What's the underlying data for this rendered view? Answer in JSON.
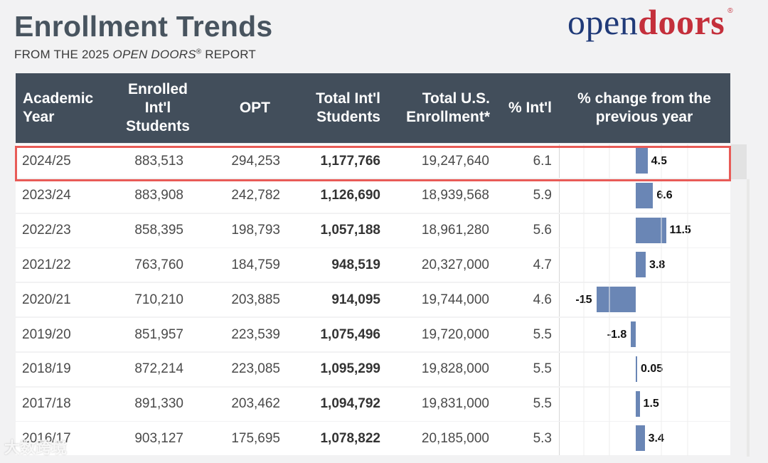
{
  "header": {
    "title": "Enrollment Trends",
    "subtitle_pre": "FROM THE 2025 ",
    "subtitle_em": "OPEN DOORS",
    "subtitle_reg": "®",
    "subtitle_post": " REPORT"
  },
  "logo": {
    "open": "open",
    "doors": "doors",
    "reg": "®"
  },
  "table": {
    "columns": [
      "Academic\nYear",
      "Enrolled\nInt'l\nStudents",
      "OPT",
      "Total Int'l\nStudents",
      "Total U.S.\nEnrollment*",
      "% Int'l",
      "% change from the\nprevious year"
    ]
  },
  "chart_data": {
    "type": "table",
    "title": "Enrollment Trends",
    "bar_column": "% change from the previous year",
    "xlim": [
      -20,
      20
    ],
    "bar_color": "#6a86b5",
    "highlight_color": "#e85b57",
    "highlighted_row": "2024/25",
    "rows": [
      {
        "year": "2024/25",
        "enrolled": "883,513",
        "opt": "294,253",
        "total_intl": "1,177,766",
        "total_us": "19,247,640",
        "pct_intl": "6.1",
        "change": 4.5,
        "change_label": "4.5"
      },
      {
        "year": "2023/24",
        "enrolled": "883,908",
        "opt": "242,782",
        "total_intl": "1,126,690",
        "total_us": "18,939,568",
        "pct_intl": "5.9",
        "change": 6.6,
        "change_label": "6.6"
      },
      {
        "year": "2022/23",
        "enrolled": "858,395",
        "opt": "198,793",
        "total_intl": "1,057,188",
        "total_us": "18,961,280",
        "pct_intl": "5.6",
        "change": 11.5,
        "change_label": "11.5"
      },
      {
        "year": "2021/22",
        "enrolled": "763,760",
        "opt": "184,759",
        "total_intl": "948,519",
        "total_us": "20,327,000",
        "pct_intl": "4.7",
        "change": 3.8,
        "change_label": "3.8"
      },
      {
        "year": "2020/21",
        "enrolled": "710,210",
        "opt": "203,885",
        "total_intl": "914,095",
        "total_us": "19,744,000",
        "pct_intl": "4.6",
        "change": -15,
        "change_label": "-15"
      },
      {
        "year": "2019/20",
        "enrolled": "851,957",
        "opt": "223,539",
        "total_intl": "1,075,496",
        "total_us": "19,720,000",
        "pct_intl": "5.5",
        "change": -1.8,
        "change_label": "-1.8"
      },
      {
        "year": "2018/19",
        "enrolled": "872,214",
        "opt": "223,085",
        "total_intl": "1,095,299",
        "total_us": "19,828,000",
        "pct_intl": "5.5",
        "change": 0.05,
        "change_label": "0.05"
      },
      {
        "year": "2017/18",
        "enrolled": "891,330",
        "opt": "203,462",
        "total_intl": "1,094,792",
        "total_us": "19,831,000",
        "pct_intl": "5.5",
        "change": 1.5,
        "change_label": "1.5"
      },
      {
        "year": "2016/17",
        "enrolled": "903,127",
        "opt": "175,695",
        "total_intl": "1,078,822",
        "total_us": "20,185,000",
        "pct_intl": "5.3",
        "change": 3.4,
        "change_label": "3.4"
      }
    ]
  },
  "watermark": "大数跨境"
}
